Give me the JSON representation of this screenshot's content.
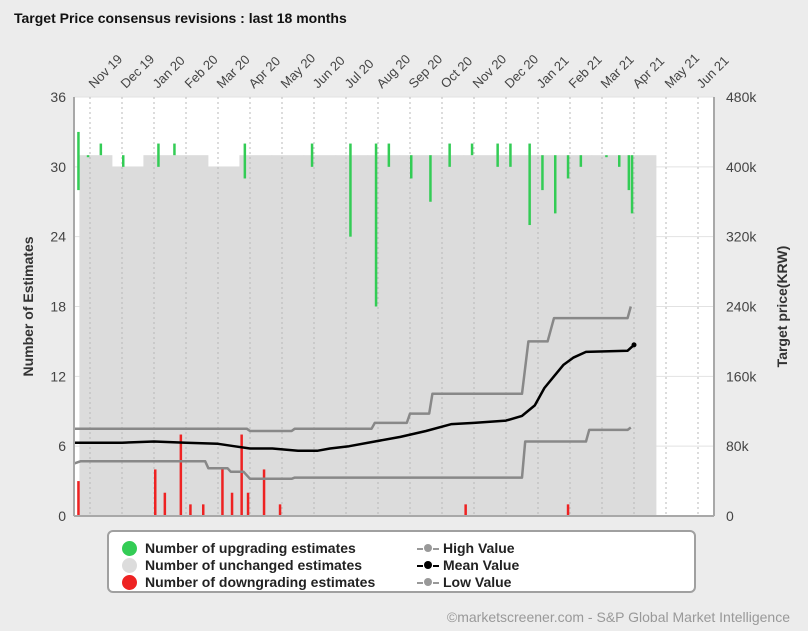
{
  "title": "Target Price consensus revisions : last 18 months",
  "credit": "©marketscreener.com - S&P Global Market Intelligence",
  "chart_data": {
    "type": "bar",
    "x_tick_labels": [
      "Nov 19",
      "Dec 19",
      "Jan 20",
      "Feb 20",
      "Mar 20",
      "Apr 20",
      "May 20",
      "Jun 20",
      "Jul 20",
      "Aug 20",
      "Sep 20",
      "Oct 20",
      "Nov 20",
      "Dec 20",
      "Jan 21",
      "Feb 21",
      "Mar 21",
      "Apr 21",
      "May 21",
      "Jun 21"
    ],
    "x_range_months": [
      0,
      20
    ],
    "y_left": {
      "label": "Number of Estimates",
      "range": [
        0,
        36
      ],
      "ticks": [
        "0",
        "6",
        "12",
        "18",
        "24",
        "30",
        "36"
      ]
    },
    "y_right": {
      "label": "Target price(KRW)",
      "range": [
        0,
        480000
      ],
      "ticks": [
        "0",
        "80k",
        "160k",
        "240k",
        "320k",
        "400k",
        "480k"
      ]
    },
    "grid": true,
    "legend": [
      "Number of upgrading estimates",
      "Number of unchanged estimates",
      "Number of downgrading estimates",
      "High Value",
      "Mean Value",
      "Low Value"
    ],
    "colors": {
      "upgrading": "#33cc55",
      "unchanged": "#dcdcdc",
      "downgrading": "#ee2222",
      "high": "#888888",
      "mean": "#000000",
      "low": "#888888"
    },
    "unchanged_estimates": [
      [
        0.2,
        31
      ],
      [
        1.2,
        30
      ],
      [
        2.2,
        31
      ],
      [
        3.2,
        31
      ],
      [
        4.2,
        30
      ],
      [
        5.2,
        31
      ],
      [
        6.2,
        31
      ],
      [
        7.2,
        31
      ],
      [
        8.2,
        31
      ],
      [
        9.2,
        31
      ],
      [
        10.2,
        31
      ],
      [
        11.2,
        31
      ],
      [
        12.2,
        31
      ],
      [
        13.2,
        31
      ],
      [
        14.2,
        31
      ],
      [
        15.2,
        31
      ],
      [
        16.2,
        31
      ],
      [
        17.2,
        31
      ]
    ],
    "upgrading_estimates": [
      [
        0.1,
        33,
        28
      ],
      [
        0.4,
        31,
        31
      ],
      [
        0.8,
        32,
        31
      ],
      [
        1.5,
        31,
        30
      ],
      [
        2.6,
        32,
        30
      ],
      [
        3.1,
        32,
        31
      ],
      [
        5.3,
        32,
        29
      ],
      [
        7.4,
        32,
        30
      ],
      [
        8.6,
        32,
        24
      ],
      [
        9.4,
        32,
        18
      ],
      [
        9.8,
        32,
        30
      ],
      [
        10.5,
        31,
        29
      ],
      [
        11.1,
        31,
        27
      ],
      [
        11.7,
        32,
        30
      ],
      [
        12.4,
        32,
        31
      ],
      [
        13.2,
        32,
        30
      ],
      [
        13.6,
        32,
        30
      ],
      [
        14.2,
        32,
        25
      ],
      [
        14.6,
        31,
        28
      ],
      [
        15.0,
        31,
        26
      ],
      [
        15.4,
        31,
        29
      ],
      [
        15.8,
        31,
        30
      ],
      [
        16.6,
        31,
        31
      ],
      [
        17.0,
        31,
        30
      ],
      [
        17.3,
        31,
        28
      ],
      [
        17.4,
        31,
        26
      ]
    ],
    "downgrading_estimates": [
      [
        0.1,
        3
      ],
      [
        2.5,
        4
      ],
      [
        2.8,
        2
      ],
      [
        3.3,
        7
      ],
      [
        3.6,
        1
      ],
      [
        4.0,
        1
      ],
      [
        4.6,
        4
      ],
      [
        4.9,
        2
      ],
      [
        5.2,
        7
      ],
      [
        5.4,
        2
      ],
      [
        5.9,
        4
      ],
      [
        6.4,
        1
      ],
      [
        12.2,
        1
      ],
      [
        15.4,
        1
      ]
    ],
    "high_value": [
      [
        0,
        7.5
      ],
      [
        5.4,
        7.5
      ],
      [
        5.5,
        7.3
      ],
      [
        6.8,
        7.3
      ],
      [
        6.9,
        7.5
      ],
      [
        9.3,
        7.5
      ],
      [
        9.4,
        8
      ],
      [
        10.4,
        8
      ],
      [
        10.5,
        8.8
      ],
      [
        11.1,
        8.8
      ],
      [
        11.2,
        10.5
      ],
      [
        14.0,
        10.5
      ],
      [
        14.2,
        15
      ],
      [
        14.8,
        15
      ],
      [
        15.0,
        17
      ],
      [
        17.3,
        17
      ],
      [
        17.4,
        18
      ]
    ],
    "mean_value": [
      [
        0,
        6.3
      ],
      [
        1.5,
        6.3
      ],
      [
        2.5,
        6.4
      ],
      [
        3.5,
        6.3
      ],
      [
        4.5,
        6.2
      ],
      [
        5.0,
        6.0
      ],
      [
        5.5,
        5.8
      ],
      [
        6.2,
        5.8
      ],
      [
        7.0,
        5.6
      ],
      [
        7.6,
        5.6
      ],
      [
        8.0,
        5.8
      ],
      [
        8.6,
        6.0
      ],
      [
        9.4,
        6.4
      ],
      [
        10.2,
        6.8
      ],
      [
        11.0,
        7.3
      ],
      [
        11.8,
        7.9
      ],
      [
        12.5,
        8.0
      ],
      [
        13.5,
        8.2
      ],
      [
        14.0,
        8.6
      ],
      [
        14.4,
        9.5
      ],
      [
        14.7,
        11
      ],
      [
        15.0,
        12
      ],
      [
        15.3,
        13
      ],
      [
        15.6,
        13.6
      ],
      [
        16.0,
        14.1
      ],
      [
        17.3,
        14.2
      ],
      [
        17.5,
        14.7
      ]
    ],
    "low_value": [
      [
        0,
        4.5
      ],
      [
        0.2,
        4.7
      ],
      [
        4.1,
        4.7
      ],
      [
        4.2,
        4.1
      ],
      [
        4.8,
        4.1
      ],
      [
        4.9,
        3.8
      ],
      [
        5.3,
        3.8
      ],
      [
        5.5,
        3.2
      ],
      [
        6.8,
        3.2
      ],
      [
        6.9,
        3.3
      ],
      [
        14.0,
        3.3
      ],
      [
        14.1,
        6.4
      ],
      [
        16.0,
        6.4
      ],
      [
        16.1,
        7.4
      ],
      [
        17.3,
        7.4
      ],
      [
        17.4,
        7.6
      ]
    ]
  }
}
